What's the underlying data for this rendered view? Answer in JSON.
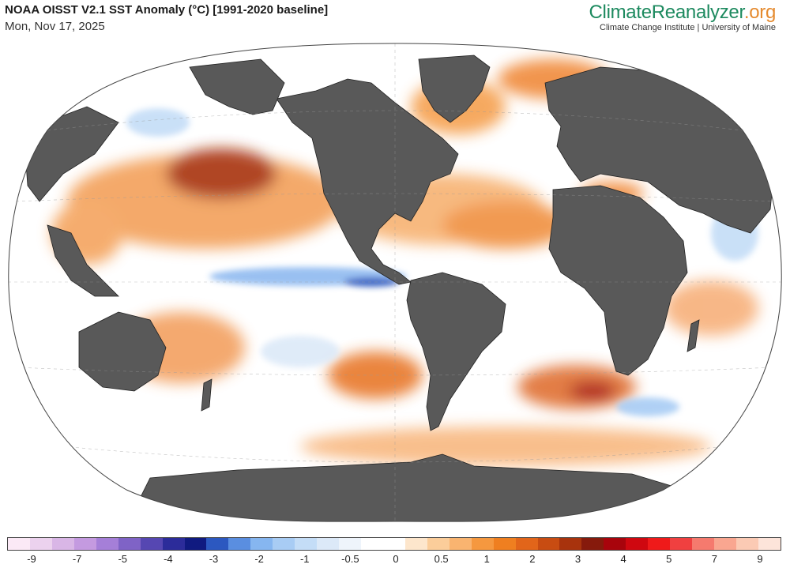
{
  "header": {
    "title": "NOAA OISST V2.1 SST Anomaly (°C) [1991-2020 baseline]",
    "date": "Mon, Nov 17, 2025"
  },
  "brand": {
    "name_main": "ClimateReanalyzer",
    "name_suffix": ".org",
    "subtitle": "Climate Change Institute | University of Maine"
  },
  "legend": {
    "colors": [
      "#fbe9f6",
      "#ecd2ee",
      "#d9b6e6",
      "#c49ae0",
      "#a57fd8",
      "#7f63c6",
      "#5647b2",
      "#2c2c9a",
      "#101a80",
      "#2c58c0",
      "#5a8ee0",
      "#86b6f0",
      "#a8ccf4",
      "#c4ddf7",
      "#dce9f8",
      "#eef4fb",
      "#ffffff",
      "#ffffff",
      "#fde6cc",
      "#fbcd9a",
      "#f9b470",
      "#f5983f",
      "#ef7f20",
      "#e2651a",
      "#c84c12",
      "#a8330d",
      "#861a0c",
      "#a8040c",
      "#cf0810",
      "#ef1a1a",
      "#f04040",
      "#f57a6e",
      "#f9a690",
      "#fbcab4",
      "#fde4da"
    ],
    "ticks": [
      "-9",
      "-7",
      "-5",
      "-4",
      "-3",
      "-2",
      "-1",
      "-0.5",
      "0",
      "0.5",
      "1",
      "2",
      "3",
      "4",
      "5",
      "7",
      "9"
    ]
  },
  "map": {
    "projection": "Winkel Tripel",
    "land_color": "#595959",
    "ocean_base_color": "#ffffff"
  }
}
